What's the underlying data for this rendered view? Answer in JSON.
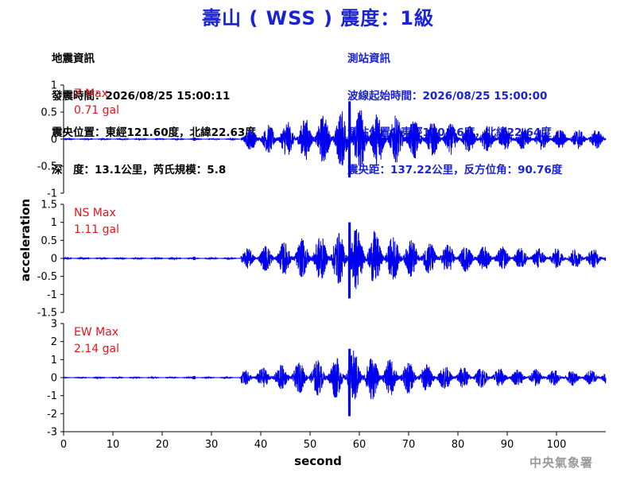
{
  "header": {
    "title": "壽山 ( WSS ) 震度：1級",
    "quake_info": {
      "heading": "地震資訊",
      "origin_time": "發震時間：2026/08/25 15:00:11",
      "epicenter": "震央位置：東經121.60度，北緯22.63度",
      "depth_magnitude": "深　度：13.1公里，芮氏規模：5.8"
    },
    "station_info": {
      "heading": "測站資訊",
      "wave_start": "波線起始時間：2026/08/25 15:00:00",
      "station_location": "測站位置：東經120.26度，北緯22.64度",
      "distance_azimuth": "震央距：137.22公里，反方位角：90.76度"
    }
  },
  "footer": {
    "agency": "中央氣象署"
  },
  "colors": {
    "title": "#1a22d6",
    "trace": "#0000ee",
    "max_label": "#e8141c"
  },
  "chart_data": {
    "type": "line",
    "xlabel": "second",
    "ylabel": "acceleration",
    "xlim": [
      0,
      110
    ],
    "xticks": [
      "0",
      "10",
      "20",
      "30",
      "40",
      "50",
      "60",
      "70",
      "80",
      "90",
      "100"
    ],
    "p_arrival": 36,
    "peak_time": 58,
    "panels": [
      {
        "component": "Z",
        "max_label": "Z Max",
        "max_value": "0.71 gal",
        "ylim": [
          -1,
          1
        ],
        "yticks": [
          "1",
          "0.5",
          "0",
          "-0.5",
          "-1"
        ],
        "peak_positive": 0.7,
        "peak_negative": -0.71,
        "pre_noise": 0.01
      },
      {
        "component": "NS",
        "max_label": "NS Max",
        "max_value": "1.11 gal",
        "ylim": [
          -1.5,
          1.5
        ],
        "yticks": [
          "1.5",
          "1",
          "0.5",
          "0",
          "-0.5",
          "-1",
          "-1.5"
        ],
        "peak_positive": 1.0,
        "peak_negative": -1.11,
        "pre_noise": 0.02
      },
      {
        "component": "EW",
        "max_label": "EW Max",
        "max_value": "2.14 gal",
        "ylim": [
          -3,
          3
        ],
        "yticks": [
          "3",
          "2",
          "1",
          "0",
          "-1",
          "-2",
          "-3"
        ],
        "peak_positive": 1.6,
        "peak_negative": -2.14,
        "pre_noise": 0.03
      }
    ]
  }
}
